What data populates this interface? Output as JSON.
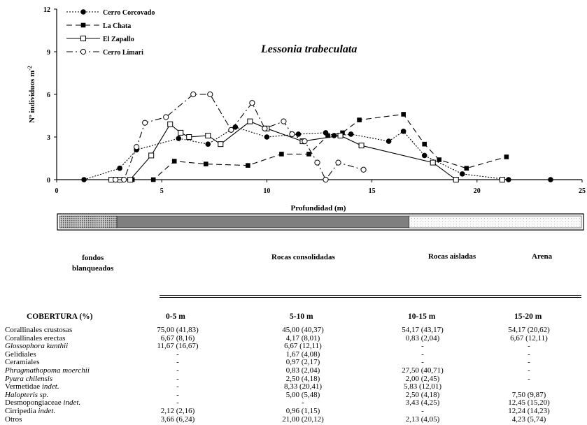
{
  "chart_data": {
    "type": "line",
    "title": "Lessonia trabeculata",
    "xlabel": "Profundidad (m)",
    "ylabel": "Nº individuos m",
    "ylabel_sup": "-2",
    "xlim": [
      0,
      25
    ],
    "ylim": [
      0,
      12
    ],
    "xticks": [
      0,
      5,
      10,
      15,
      20,
      25
    ],
    "yticks": [
      0,
      3,
      6,
      9,
      12
    ],
    "legend_position": "top-left",
    "series": [
      {
        "name": "Cerro Corcovado",
        "style": "dotted",
        "marker": "circle-filled",
        "x": [
          1.3,
          3.0,
          3.8,
          5.8,
          7.2,
          8.5,
          10.0,
          11.5,
          12.8,
          13.2,
          13.5,
          14.0,
          15.8,
          16.5,
          17.5,
          19.3,
          21.5,
          23.5
        ],
        "y": [
          0.0,
          0.8,
          2.1,
          2.9,
          2.5,
          3.7,
          3.0,
          3.2,
          3.3,
          3.1,
          3.1,
          3.2,
          2.7,
          3.4,
          1.7,
          0.4,
          0.0,
          0.0
        ]
      },
      {
        "name": "La Chata",
        "style": "long-dash",
        "marker": "square-filled",
        "x": [
          3.6,
          4.6,
          5.6,
          7.1,
          9.1,
          10.7,
          12.0,
          12.9,
          13.6,
          14.4,
          16.5,
          17.5,
          18.2,
          19.5,
          21.4
        ],
        "y": [
          0.0,
          0.0,
          1.3,
          1.1,
          1.0,
          1.8,
          1.8,
          3.1,
          3.3,
          4.2,
          4.6,
          2.5,
          1.4,
          0.8,
          1.6
        ]
      },
      {
        "name": "El Zapallo",
        "style": "solid",
        "marker": "square-open",
        "x": [
          2.6,
          3.0,
          3.5,
          4.5,
          5.4,
          5.9,
          6.3,
          7.2,
          7.8,
          9.2,
          10.0,
          11.7,
          13.5,
          14.5,
          17.9,
          19.0,
          21.2
        ],
        "y": [
          0.0,
          0.0,
          0.0,
          1.7,
          3.9,
          3.3,
          3.0,
          3.1,
          2.5,
          4.1,
          3.6,
          2.7,
          3.1,
          2.4,
          1.2,
          0.0,
          0.0
        ]
      },
      {
        "name": "Cerro Límari",
        "style": "dash-dot",
        "marker": "circle-open",
        "x": [
          2.8,
          3.2,
          3.8,
          4.2,
          5.2,
          6.5,
          7.3,
          8.3,
          9.3,
          9.9,
          10.8,
          11.2,
          11.8,
          12.4,
          12.8,
          13.4,
          14.6
        ],
        "y": [
          0.0,
          0.0,
          2.3,
          4.0,
          4.4,
          6.0,
          6.0,
          3.5,
          5.4,
          3.6,
          4.1,
          3.2,
          2.7,
          1.2,
          0.0,
          1.2,
          0.7
        ]
      }
    ]
  },
  "coverage_bar": {
    "segments": [
      {
        "width": 0.11,
        "pattern": "dense-dots",
        "color": "#a8a8a8"
      },
      {
        "width": 0.56,
        "pattern": "solid",
        "color": "#7f7f7f"
      },
      {
        "width": 0.33,
        "pattern": "light-dots",
        "color": "#f2f2f2"
      }
    ],
    "labels": [
      {
        "line1": "fondos",
        "line2": "blanqueados"
      },
      {
        "line1": "Rocas consolidadas"
      },
      {
        "line1": "Rocas aisladas"
      },
      {
        "line1": "Arena"
      }
    ]
  },
  "table": {
    "headers": [
      "COBERTURA (%)",
      "0-5 m",
      "5-10 m",
      "10-15 m",
      "15-20 m"
    ],
    "rows": [
      {
        "name": "Corallinales crustosas",
        "italic": "",
        "values": [
          "75,00 (41,83)",
          "45,00 (40,37)",
          "54,17 (43,17)",
          "54,17 (20,62)"
        ]
      },
      {
        "name": "Corallinales erectas",
        "italic": "",
        "values": [
          "6,67 (8,16)",
          "4,17 (8,01)",
          "0,83 (2,04)",
          "6,67 (12,11)"
        ]
      },
      {
        "name": "",
        "italic": "Glossophora kunthii",
        "values": [
          "11,67 (16,67)",
          "6,67 (12,11)",
          "-",
          "-"
        ]
      },
      {
        "name": "Gelidiales",
        "italic": "",
        "values": [
          "-",
          "1,67 (4,08)",
          "-",
          "-"
        ]
      },
      {
        "name": "Ceramiales",
        "italic": "",
        "values": [
          "-",
          "0,97 (2,17)",
          "-",
          "-"
        ]
      },
      {
        "name": "",
        "italic": "Phragmathopoma moerchii",
        "values": [
          "-",
          "0,83 (2,04)",
          "27,50 (40,71)",
          "-"
        ]
      },
      {
        "name": "",
        "italic": "Pyura chilensis",
        "values": [
          "-",
          "2,50 (4,18)",
          "2,00 (2,45)",
          "-"
        ]
      },
      {
        "name": "Vermetidae ",
        "italic": "indet.",
        "values": [
          "-",
          "8,33 (20,41)",
          "5,83 (12,01)",
          ""
        ]
      },
      {
        "name": "",
        "italic": "Halopteris sp.",
        "values": [
          "-",
          "5,00 (5,48)",
          "2,50 (4,18)",
          "7,50 (9,87)"
        ]
      },
      {
        "name": "Desmopongiaceae ",
        "italic": "indet.",
        "values": [
          "-",
          "-",
          "3,43 (4,25)",
          "12,45 (15,20)"
        ]
      },
      {
        "name": "Cirripedia ",
        "italic": "indet.",
        "values": [
          "2,12 (2,16)",
          "0,96 (1,15)",
          "-",
          "12,24 (14,23)"
        ]
      },
      {
        "name": "Otros",
        "italic": "",
        "values": [
          "3,66 (6,24)",
          "21,00 (20,12)",
          "2,13 (4,05)",
          "4,23 (5,74)"
        ]
      }
    ]
  }
}
